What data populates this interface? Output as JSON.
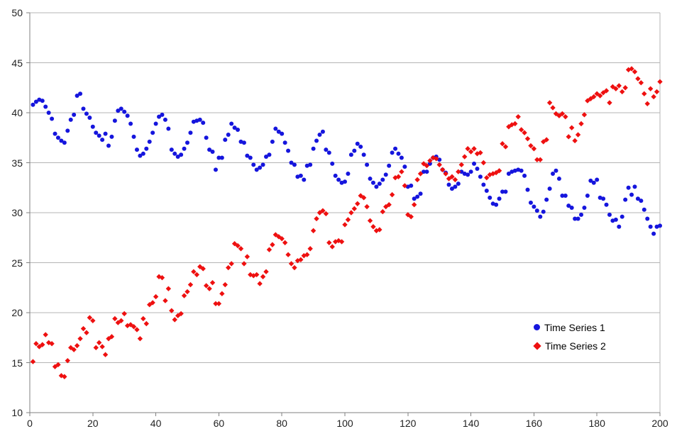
{
  "chart_data": {
    "type": "scatter",
    "title": "",
    "xlabel": "",
    "ylabel": "",
    "x_axis": {
      "min": 0,
      "max": 200,
      "tick_step": 20,
      "tick_labels": [
        "0",
        "20",
        "40",
        "60",
        "80",
        "100",
        "120",
        "140",
        "160",
        "180",
        "200"
      ]
    },
    "y_axis": {
      "min": 10,
      "max": 50,
      "tick_step": 5,
      "tick_labels": [
        "10",
        "15",
        "20",
        "25",
        "30",
        "35",
        "40",
        "45",
        "50"
      ]
    },
    "grid": "horizontal",
    "legend_position": "right-middle",
    "series": [
      {
        "name": "Time Series 1",
        "marker": "circle",
        "color": "#1515dd",
        "x_start": 1,
        "x_step": 1,
        "values": [
          40.8,
          41.1,
          41.3,
          41.2,
          40.6,
          40.0,
          39.4,
          37.9,
          37.5,
          37.2,
          37.0,
          38.2,
          39.3,
          39.8,
          41.7,
          41.9,
          40.4,
          39.9,
          39.5,
          38.6,
          38.0,
          37.7,
          37.3,
          37.9,
          36.7,
          37.6,
          39.2,
          40.2,
          40.4,
          40.1,
          39.7,
          38.9,
          37.6,
          36.3,
          35.7,
          35.9,
          36.4,
          37.1,
          38.0,
          38.9,
          39.6,
          39.8,
          39.3,
          38.4,
          36.3,
          35.9,
          35.6,
          35.8,
          36.4,
          37.0,
          38.0,
          39.1,
          39.2,
          39.3,
          39.0,
          37.5,
          36.3,
          36.1,
          34.3,
          35.5,
          35.5,
          37.3,
          37.8,
          38.9,
          38.5,
          38.3,
          37.1,
          37.0,
          35.7,
          35.5,
          34.8,
          34.3,
          34.5,
          34.8,
          35.6,
          35.8,
          37.1,
          38.4,
          38.1,
          37.9,
          37.0,
          36.2,
          35.0,
          34.8,
          33.6,
          33.7,
          33.3,
          34.7,
          34.8,
          36.4,
          37.2,
          37.8,
          38.1,
          36.3,
          36.0,
          34.9,
          33.7,
          33.3,
          33.0,
          33.1,
          33.9,
          35.8,
          36.2,
          36.9,
          36.6,
          35.8,
          34.8,
          33.4,
          33.0,
          32.6,
          32.9,
          33.3,
          33.8,
          34.7,
          36.0,
          36.4,
          35.9,
          35.5,
          34.6,
          32.6,
          32.7,
          31.4,
          31.6,
          31.9,
          34.1,
          34.1,
          34.9,
          35.5,
          35.6,
          35.3,
          34.3,
          34.0,
          32.8,
          32.4,
          32.6,
          32.9,
          34.1,
          33.9,
          33.8,
          34.1,
          34.9,
          34.4,
          33.6,
          32.8,
          32.2,
          31.5,
          30.9,
          30.8,
          31.4,
          32.1,
          32.1,
          33.9,
          34.1,
          34.2,
          34.3,
          34.2,
          33.7,
          32.3,
          31.0,
          30.6,
          30.2,
          29.6,
          30.1,
          31.3,
          32.4,
          33.9,
          34.2,
          33.4,
          31.7,
          31.7,
          30.7,
          30.5,
          29.4,
          29.4,
          29.8,
          30.5,
          31.7,
          33.2,
          33.0,
          33.3,
          31.5,
          31.4,
          30.8,
          29.8,
          29.2,
          29.3,
          28.6,
          29.6,
          31.3,
          32.5,
          31.8,
          32.6,
          31.4,
          31.2,
          30.3,
          29.4,
          28.6,
          27.9,
          28.6,
          28.7
        ]
      },
      {
        "name": "Time Series 2",
        "marker": "diamond",
        "color": "#ee1010",
        "x_start": 1,
        "x_step": 1,
        "values": [
          15.1,
          16.9,
          16.6,
          16.8,
          17.8,
          17.0,
          16.9,
          14.6,
          14.8,
          13.7,
          13.6,
          15.2,
          16.5,
          16.3,
          16.7,
          17.4,
          18.4,
          18.0,
          19.5,
          19.2,
          16.5,
          17.0,
          16.6,
          15.8,
          17.4,
          17.6,
          19.4,
          19.0,
          19.2,
          19.9,
          18.7,
          18.8,
          18.6,
          18.3,
          17.4,
          19.4,
          18.9,
          20.8,
          21.0,
          21.6,
          23.6,
          23.5,
          21.2,
          22.4,
          20.2,
          19.3,
          19.7,
          19.9,
          21.7,
          22.1,
          22.8,
          24.1,
          23.8,
          24.6,
          24.4,
          22.7,
          22.4,
          23.0,
          20.9,
          20.9,
          21.9,
          22.8,
          24.5,
          24.9,
          26.9,
          26.7,
          26.4,
          24.9,
          25.6,
          23.8,
          23.7,
          23.8,
          22.9,
          23.6,
          24.1,
          26.3,
          26.8,
          27.8,
          27.6,
          27.4,
          27.0,
          25.8,
          24.9,
          24.5,
          25.2,
          25.3,
          25.7,
          25.8,
          26.4,
          28.2,
          29.4,
          30.0,
          30.2,
          29.9,
          27.0,
          26.6,
          27.1,
          27.2,
          27.1,
          28.8,
          29.3,
          30.0,
          30.4,
          30.9,
          31.7,
          31.5,
          30.6,
          29.2,
          28.6,
          28.2,
          28.3,
          30.1,
          30.6,
          30.8,
          31.8,
          33.5,
          33.6,
          34.1,
          32.7,
          29.8,
          29.6,
          30.8,
          33.3,
          33.9,
          34.9,
          34.7,
          35.2,
          35.5,
          35.4,
          34.8,
          34.3,
          33.9,
          33.4,
          33.6,
          33.3,
          34.1,
          34.8,
          35.6,
          36.4,
          36.1,
          36.4,
          35.9,
          36.0,
          35.0,
          33.5,
          33.8,
          33.9,
          34.0,
          34.2,
          36.9,
          36.6,
          38.6,
          38.8,
          38.9,
          39.6,
          38.3,
          38.0,
          37.4,
          36.7,
          36.4,
          35.3,
          35.3,
          37.1,
          37.3,
          41.0,
          40.5,
          39.9,
          39.7,
          39.9,
          39.6,
          37.6,
          38.5,
          37.2,
          37.8,
          38.9,
          39.8,
          41.2,
          41.4,
          41.6,
          41.9,
          41.7,
          42.0,
          42.2,
          41.0,
          42.6,
          42.4,
          42.7,
          42.1,
          42.5,
          44.3,
          44.4,
          44.1,
          43.4,
          43.0,
          41.9,
          40.9,
          42.4,
          41.6,
          42.1,
          43.1
        ]
      }
    ],
    "style_colors": {
      "gridline": "#b4b4b4",
      "axis": "#808080",
      "tick": "#808080",
      "plot_right_border": "#b4b4b4",
      "label_text": "#222222",
      "background": "#ffffff"
    }
  }
}
